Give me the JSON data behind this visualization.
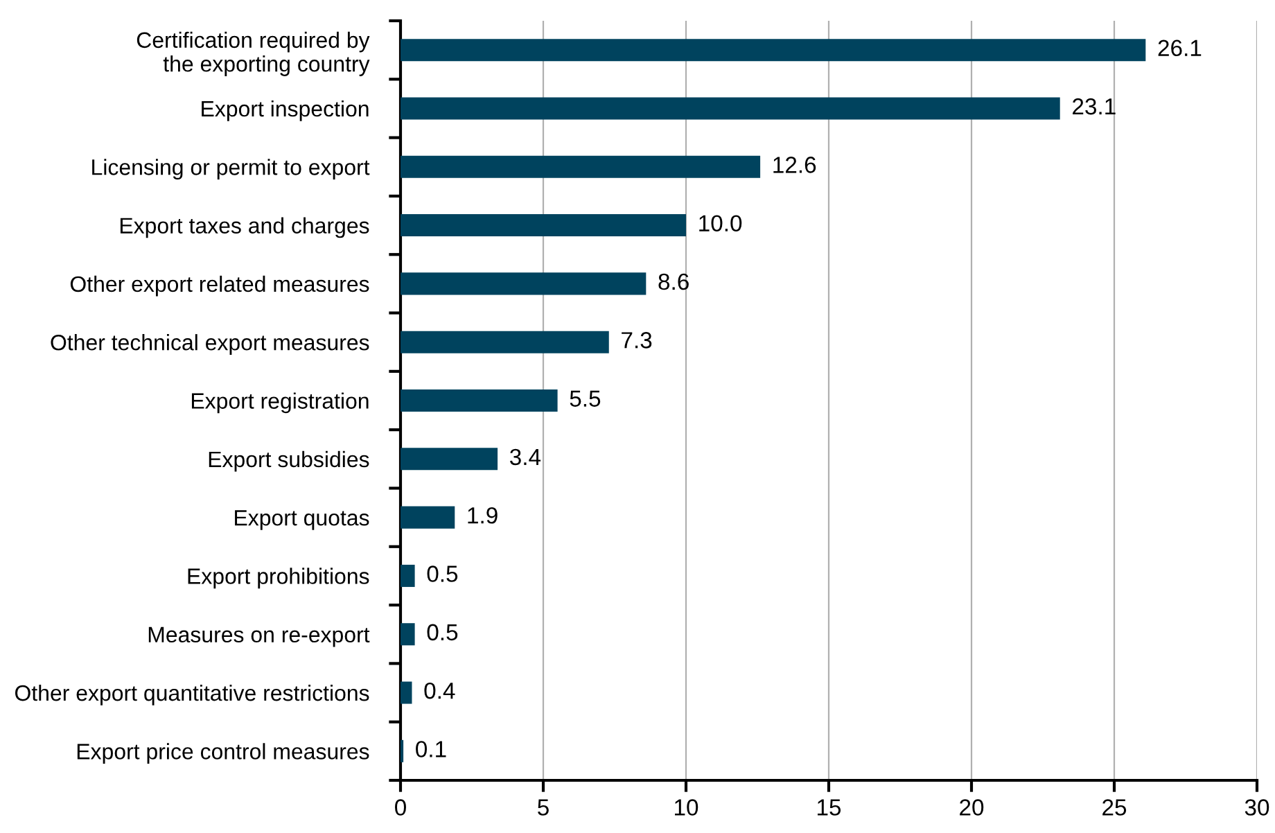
{
  "chart_data": {
    "type": "bar",
    "orientation": "horizontal",
    "categories": [
      "Certification required by\nthe exporting country",
      "Export inspection",
      "Licensing or permit to export",
      "Export taxes and charges",
      "Other export related measures",
      "Other technical export measures",
      "Export registration",
      "Export subsidies",
      "Export quotas",
      "Export prohibitions",
      "Measures on re-export",
      "Other export quantitative restrictions",
      "Export price control measures"
    ],
    "values": [
      26.1,
      23.1,
      12.6,
      10.0,
      8.6,
      7.3,
      5.5,
      3.4,
      1.9,
      0.5,
      0.5,
      0.4,
      0.1
    ],
    "value_labels": [
      "26.1",
      "23.1",
      "12.6",
      "10.0",
      "8.6",
      "7.3",
      "5.5",
      "3.4",
      "1.9",
      "0.5",
      "0.5",
      "0.4",
      "0.1"
    ],
    "color": "#00435e",
    "xlim": [
      0,
      30
    ],
    "xticks": [
      0,
      5,
      10,
      15,
      20,
      25,
      30
    ],
    "grid": "x",
    "legend": false
  }
}
